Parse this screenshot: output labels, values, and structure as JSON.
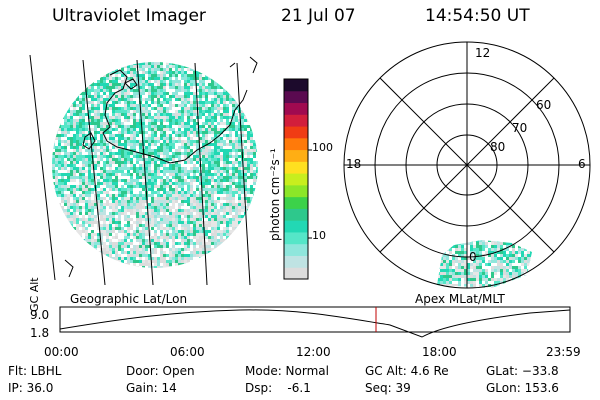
{
  "header": {
    "title": "Ultraviolet Imager",
    "date": "21 Jul 07",
    "time": "14:54:50 UT"
  },
  "colorbar": {
    "unit_label": "photon cm⁻²s⁻¹",
    "tick_labels": [
      "100",
      "10"
    ],
    "colors": [
      "#dcdcdc",
      "#bfe3e3",
      "#8fe6dc",
      "#55e6c8",
      "#22d8b4",
      "#2ec88c",
      "#3cd24a",
      "#8ce628",
      "#c8ee1e",
      "#ffe020",
      "#ffae14",
      "#ff7a0a",
      "#f03c14",
      "#d21e3c",
      "#a00a50",
      "#5a0a50",
      "#1c0a2c"
    ]
  },
  "left_panel": {
    "name": "Geographic Lat/Lon"
  },
  "polar_panel": {
    "name": "Apex MLat/MLT",
    "mlt_labels": {
      "top": "12",
      "left": "18",
      "right": "6",
      "bottom": "0"
    },
    "mlat_labels": [
      "60",
      "70",
      "80"
    ]
  },
  "timeline": {
    "ylabel": "GC Alt",
    "y_ticks": [
      "9.0",
      "1.8"
    ],
    "x_ticks": [
      "00:00",
      "06:00",
      "12:00",
      "18:00",
      "23:59"
    ],
    "current_marker_color": "#c00000"
  },
  "info": {
    "filter": "Flt: LBHL",
    "ip": "IP: 36.0",
    "door": "Door: Open",
    "gain": "Gain: 14",
    "mode": "Mode: Normal",
    "dsp": "Dsp:    -6.1",
    "gc_alt": "GC Alt: 4.6 Re",
    "seq": "Seq: 39",
    "glat": "GLat: −33.8",
    "glon": "GLon: 153.6"
  }
}
